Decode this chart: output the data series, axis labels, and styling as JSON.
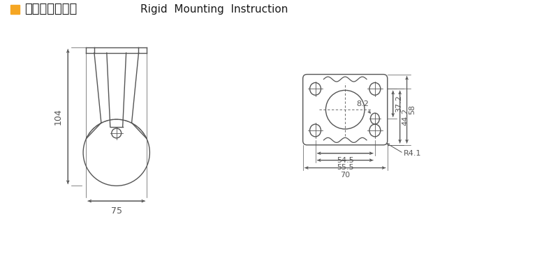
{
  "title_chinese": "定向安装尺寸图",
  "title_english": "Rigid  Mounting  Instruction",
  "title_square_color": "#F5A623",
  "background_color": "#ffffff",
  "line_color": "#555555",
  "dim_color": "#555555"
}
